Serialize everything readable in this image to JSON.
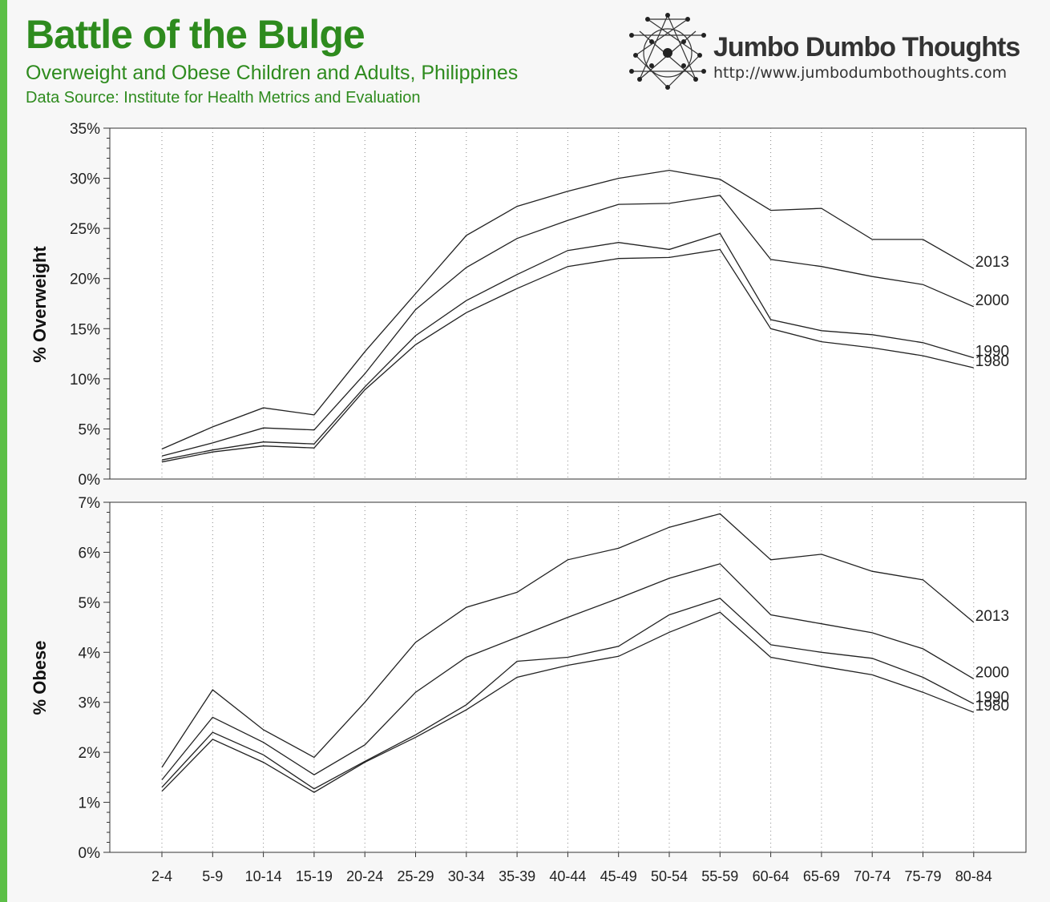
{
  "header": {
    "title": "Battle of the Bulge",
    "subtitle": "Overweight and Obese Children and Adults, Philippines",
    "source": "Data Source: Institute for Health Metrics and Evaluation"
  },
  "brand": {
    "name": "Jumbo Dumbo Thoughts",
    "url": "http://www.jumbodumbothoughts.com",
    "logo_icon": "network-nodes-icon"
  },
  "colors": {
    "accent": "#2e8b1e",
    "left_bar": "#5cbf47",
    "line": "#222222"
  },
  "chart_data": [
    {
      "type": "line",
      "ylabel": "% Overweight",
      "ylim": [
        0,
        35
      ],
      "yticks": [
        "0%",
        "5%",
        "10%",
        "15%",
        "20%",
        "25%",
        "30%",
        "35%"
      ],
      "grid": "vertical-dotted",
      "categories": [
        "2-4",
        "5-9",
        "10-14",
        "15-19",
        "20-24",
        "25-29",
        "30-34",
        "35-39",
        "40-44",
        "45-49",
        "50-54",
        "55-59",
        "60-64",
        "65-69",
        "70-74",
        "75-79",
        "80-84"
      ],
      "series": [
        {
          "name": "2013",
          "values": [
            3.0,
            5.2,
            7.1,
            6.4,
            12.7,
            18.5,
            24.3,
            27.2,
            28.7,
            30.0,
            30.8,
            29.9,
            26.8,
            27.0,
            23.9,
            23.9,
            21.0
          ]
        },
        {
          "name": "2000",
          "values": [
            2.3,
            3.6,
            5.1,
            4.9,
            10.5,
            16.9,
            21.1,
            24.0,
            25.8,
            27.4,
            27.5,
            28.3,
            21.9,
            21.2,
            20.2,
            19.4,
            17.2
          ]
        },
        {
          "name": "1990",
          "values": [
            1.9,
            2.9,
            3.7,
            3.5,
            9.2,
            14.3,
            17.8,
            20.4,
            22.8,
            23.6,
            22.9,
            24.5,
            15.9,
            14.8,
            14.4,
            13.6,
            12.1
          ]
        },
        {
          "name": "1980",
          "values": [
            1.7,
            2.7,
            3.3,
            3.1,
            8.9,
            13.4,
            16.6,
            19.0,
            21.2,
            22.0,
            22.1,
            22.9,
            15.0,
            13.7,
            13.1,
            12.3,
            11.1
          ]
        }
      ]
    },
    {
      "type": "line",
      "ylabel": "% Obese",
      "ylim": [
        0,
        7
      ],
      "yticks": [
        "0%",
        "1%",
        "2%",
        "3%",
        "4%",
        "5%",
        "6%",
        "7%"
      ],
      "grid": "vertical-dotted",
      "categories": [
        "2-4",
        "5-9",
        "10-14",
        "15-19",
        "20-24",
        "25-29",
        "30-34",
        "35-39",
        "40-44",
        "45-49",
        "50-54",
        "55-59",
        "60-64",
        "65-69",
        "70-74",
        "75-79",
        "80-84"
      ],
      "series": [
        {
          "name": "2013",
          "values": [
            1.7,
            3.25,
            2.45,
            1.9,
            3.0,
            4.2,
            4.9,
            5.2,
            5.85,
            6.08,
            6.5,
            6.77,
            5.85,
            5.96,
            5.62,
            5.45,
            4.6
          ]
        },
        {
          "name": "2000",
          "values": [
            1.45,
            2.7,
            2.2,
            1.55,
            2.15,
            3.2,
            3.9,
            4.3,
            4.7,
            5.08,
            5.48,
            5.77,
            4.75,
            4.57,
            4.39,
            4.07,
            3.47
          ]
        },
        {
          "name": "1990",
          "values": [
            1.3,
            2.4,
            1.95,
            1.27,
            1.82,
            2.35,
            2.95,
            3.82,
            3.9,
            4.12,
            4.75,
            5.08,
            4.15,
            4.0,
            3.88,
            3.5,
            2.97
          ]
        },
        {
          "name": "1980",
          "values": [
            1.22,
            2.26,
            1.8,
            1.2,
            1.8,
            2.3,
            2.85,
            3.5,
            3.74,
            3.92,
            4.4,
            4.8,
            3.9,
            3.72,
            3.55,
            3.2,
            2.8
          ]
        }
      ]
    }
  ]
}
